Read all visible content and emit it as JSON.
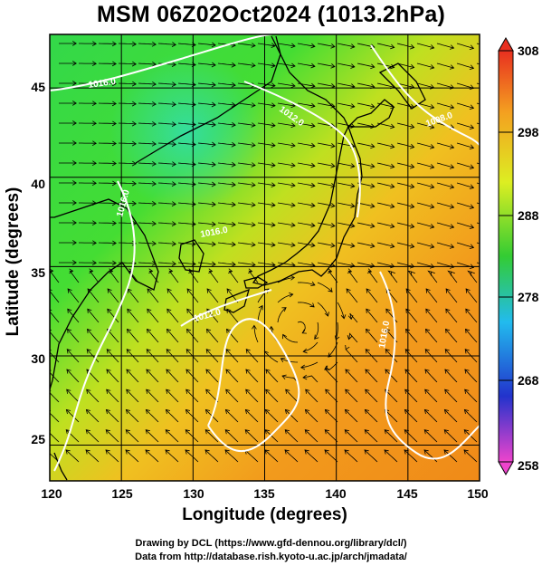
{
  "title": "MSM 06Z02Oct2024 (1013.2hPa)",
  "xaxis": {
    "label": "Longitude (degrees)",
    "ticks": [
      "120",
      "125",
      "130",
      "135",
      "140",
      "145",
      "150"
    ],
    "range": [
      120,
      150
    ]
  },
  "yaxis": {
    "label": "Latitude  (degrees)",
    "ticks": [
      "25",
      "30",
      "35",
      "40",
      "45"
    ],
    "range": [
      23,
      48
    ]
  },
  "colorbar": {
    "ticks": [
      "308",
      "298",
      "288",
      "278",
      "268",
      "258"
    ],
    "range": [
      258,
      308
    ],
    "colors": [
      "#ee44cc",
      "#2233cc",
      "#22bbee",
      "#33cc33",
      "#ddee22",
      "#f4a020",
      "#e83020"
    ]
  },
  "contours": {
    "labels": [
      "1016.0",
      "1012.0",
      "1008.0",
      "1012.0",
      "1016.0",
      "1016.0",
      "1016.0"
    ]
  },
  "footer": {
    "line1": "Drawing by DCL (https://www.gfd-dennou.org/library/dcl/)",
    "line2": "Data from http://database.rish.kyoto-u.ac.jp/arch/jmadata/"
  }
}
